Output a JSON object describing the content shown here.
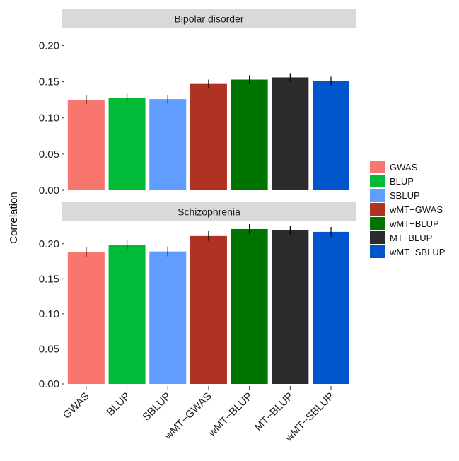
{
  "chart_data": {
    "type": "bar",
    "ylabel": "Correlation",
    "categories": [
      "GWAS",
      "BLUP",
      "SBLUP",
      "wMT−GWAS",
      "wMT−BLUP",
      "MT−BLUP",
      "wMT−SBLUP"
    ],
    "colors": [
      "#F8766D",
      "#00BA38",
      "#619CFF",
      "#B03222",
      "#007400",
      "#2B2B2B",
      "#0055CC"
    ],
    "legend": {
      "position": "right",
      "entries": [
        "GWAS",
        "BLUP",
        "SBLUP",
        "wMT−GWAS",
        "wMT−BLUP",
        "MT−BLUP",
        "wMT−SBLUP"
      ]
    },
    "grid": false,
    "panels": [
      {
        "title": "Bipolar disorder",
        "values": [
          0.125,
          0.128,
          0.126,
          0.147,
          0.153,
          0.156,
          0.151
        ],
        "errors": [
          0.006,
          0.006,
          0.006,
          0.006,
          0.006,
          0.006,
          0.006
        ],
        "ylim": [
          0,
          0.22
        ],
        "yticks": [
          "0.00",
          "0.05",
          "0.10",
          "0.15",
          "0.20"
        ],
        "ytick_values": [
          0,
          0.05,
          0.1,
          0.15,
          0.2
        ]
      },
      {
        "title": "Schizophrenia",
        "values": [
          0.188,
          0.198,
          0.189,
          0.211,
          0.221,
          0.219,
          0.217
        ],
        "errors": [
          0.007,
          0.007,
          0.007,
          0.007,
          0.007,
          0.007,
          0.007
        ],
        "ylim": [
          0,
          0.228
        ],
        "yticks": [
          "0.00",
          "0.05",
          "0.10",
          "0.15",
          "0.20"
        ],
        "ytick_values": [
          0,
          0.05,
          0.1,
          0.15,
          0.2
        ]
      }
    ]
  }
}
